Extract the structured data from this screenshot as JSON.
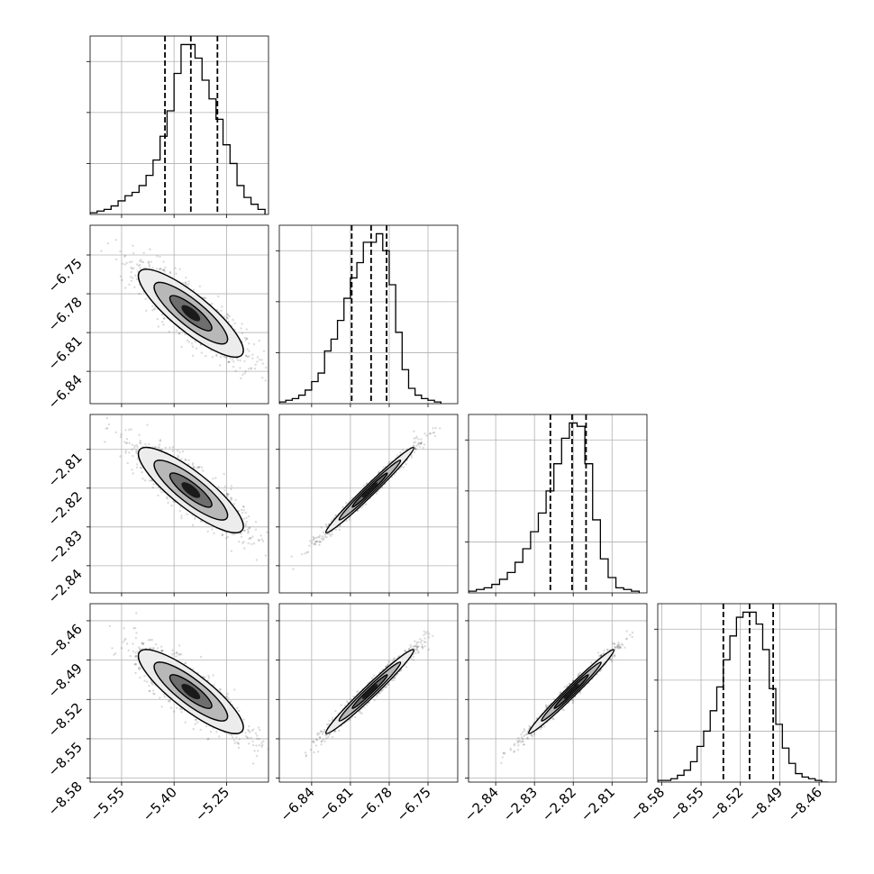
{
  "chart_data": {
    "type": "corner",
    "grid": true,
    "parameters": [
      {
        "index": 0,
        "range": [
          -5.64,
          -5.13
        ],
        "ticks": [
          -5.55,
          -5.4,
          -5.25
        ],
        "tick_labels": [
          "−5.55",
          "−5.40",
          "−5.25"
        ],
        "quantiles": [
          -5.426,
          -5.352,
          -5.276
        ]
      },
      {
        "index": 1,
        "range": [
          -6.865,
          -6.727
        ],
        "ticks": [
          -6.84,
          -6.81,
          -6.78,
          -6.75
        ],
        "tick_labels": [
          "−6.84",
          "−6.81",
          "−6.78",
          "−6.75"
        ],
        "quantiles": [
          -6.809,
          -6.794,
          -6.782
        ]
      },
      {
        "index": 2,
        "range": [
          -2.847,
          -2.801
        ],
        "ticks": [
          -2.84,
          -2.83,
          -2.82,
          -2.81
        ],
        "tick_labels": [
          "−2.84",
          "−2.83",
          "−2.82",
          "−2.81"
        ],
        "quantiles": [
          -2.8259,
          -2.8203,
          -2.8167
        ]
      },
      {
        "index": 3,
        "range": [
          -8.583,
          -8.447
        ],
        "ticks": [
          -8.58,
          -8.55,
          -8.52,
          -8.49,
          -8.46
        ],
        "tick_labels": [
          "−8.58",
          "−8.55",
          "−8.52",
          "−8.49",
          "−8.46"
        ],
        "quantiles": [
          -8.533,
          -8.513,
          -8.495
        ]
      }
    ],
    "histograms": [
      {
        "param": 0,
        "bin_edges": [
          -5.64,
          -5.62,
          -5.6,
          -5.58,
          -5.56,
          -5.54,
          -5.52,
          -5.5,
          -5.48,
          -5.46,
          -5.44,
          -5.42,
          -5.4,
          -5.38,
          -5.36,
          -5.34,
          -5.32,
          -5.3,
          -5.28,
          -5.26,
          -5.24,
          -5.22,
          -5.2,
          -5.18,
          -5.16,
          -5.14
        ],
        "counts": [
          1,
          2,
          3,
          5,
          8,
          11,
          13,
          17,
          23,
          32,
          46,
          61,
          83,
          100,
          100,
          92,
          79,
          68,
          56,
          41,
          30,
          17,
          10,
          6,
          3
        ]
      },
      {
        "param": 1,
        "bin_edges": [
          -6.865,
          -6.86,
          -6.855,
          -6.85,
          -6.845,
          -6.84,
          -6.835,
          -6.83,
          -6.825,
          -6.82,
          -6.815,
          -6.81,
          -6.805,
          -6.8,
          -6.795,
          -6.79,
          -6.785,
          -6.78,
          -6.775,
          -6.77,
          -6.765,
          -6.76,
          -6.755,
          -6.75,
          -6.745,
          -6.74
        ],
        "counts": [
          1,
          2,
          3,
          5,
          8,
          13,
          18,
          31,
          38,
          49,
          62,
          74,
          83,
          95,
          95,
          100,
          90,
          70,
          42,
          20,
          9,
          5,
          3,
          2,
          1
        ]
      },
      {
        "param": 2,
        "bin_edges": [
          -2.847,
          -2.845,
          -2.843,
          -2.841,
          -2.839,
          -2.837,
          -2.835,
          -2.833,
          -2.831,
          -2.829,
          -2.827,
          -2.825,
          -2.823,
          -2.821,
          -2.819,
          -2.817,
          -2.815,
          -2.813,
          -2.811,
          -2.809,
          -2.807,
          -2.805,
          -2.803
        ],
        "counts": [
          1,
          2,
          3,
          5,
          8,
          12,
          18,
          26,
          36,
          47,
          60,
          76,
          91,
          100,
          98,
          76,
          43,
          20,
          9,
          3,
          2,
          1
        ]
      },
      {
        "param": 3,
        "bin_edges": [
          -8.583,
          -8.578,
          -8.573,
          -8.568,
          -8.563,
          -8.558,
          -8.553,
          -8.548,
          -8.543,
          -8.538,
          -8.533,
          -8.528,
          -8.523,
          -8.518,
          -8.513,
          -8.508,
          -8.503,
          -8.498,
          -8.493,
          -8.488,
          -8.483,
          -8.478,
          -8.473,
          -8.468,
          -8.463,
          -8.458,
          -8.453
        ],
        "counts": [
          1,
          1,
          2,
          4,
          7,
          12,
          21,
          30,
          42,
          56,
          72,
          86,
          97,
          100,
          100,
          93,
          78,
          55,
          34,
          20,
          11,
          5,
          3,
          2,
          1,
          0
        ]
      }
    ],
    "pairs": [
      {
        "x_param": 0,
        "y_param": 1,
        "mean": [
          -5.352,
          -6.795
        ],
        "sd": [
          0.075,
          0.017
        ],
        "corr": -0.85
      },
      {
        "x_param": 0,
        "y_param": 2,
        "mean": [
          -5.352,
          -2.8205
        ],
        "sd": [
          0.075,
          0.0055
        ],
        "corr": -0.85
      },
      {
        "x_param": 0,
        "y_param": 3,
        "mean": [
          -5.352,
          -8.514
        ],
        "sd": [
          0.075,
          0.016
        ],
        "corr": -0.85
      },
      {
        "x_param": 1,
        "y_param": 2,
        "mean": [
          -6.795,
          -2.8205
        ],
        "sd": [
          0.017,
          0.0055
        ],
        "corr": 0.985
      },
      {
        "x_param": 1,
        "y_param": 3,
        "mean": [
          -6.795,
          -8.514
        ],
        "sd": [
          0.017,
          0.016
        ],
        "corr": 0.98
      },
      {
        "x_param": 2,
        "y_param": 3,
        "mean": [
          -2.8205,
          -8.514
        ],
        "sd": [
          0.0055,
          0.016
        ],
        "corr": 0.985
      }
    ]
  }
}
